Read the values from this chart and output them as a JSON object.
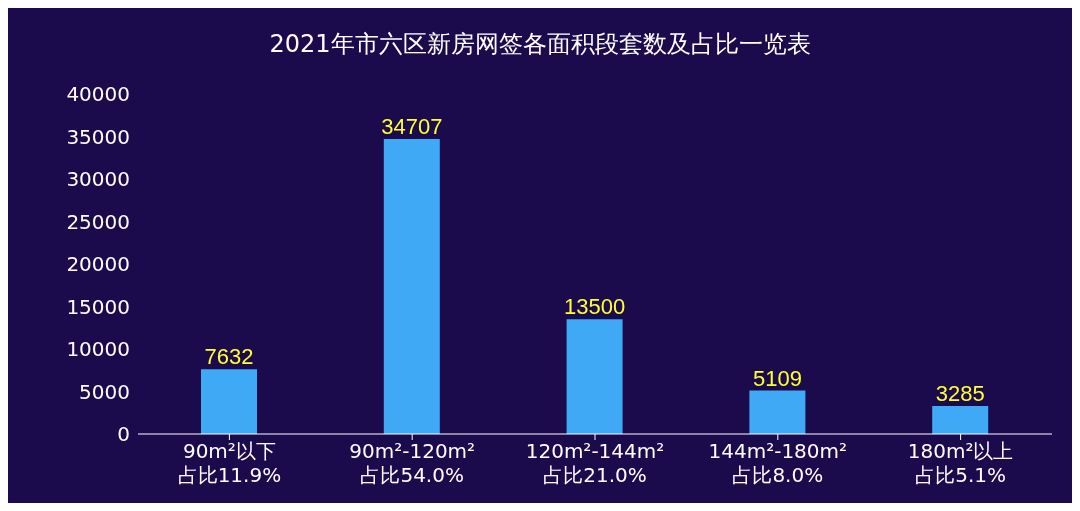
{
  "chart_data": {
    "type": "bar",
    "title": "2021年市六区新房网签各面积段套数及占比一览表",
    "categories": [
      "90m²以下",
      "90m²-120m²",
      "120m²-144m²",
      "144m²-180m²",
      "180m²以上"
    ],
    "values": [
      7632,
      34707,
      13500,
      5109,
      3285
    ],
    "color": "#3fa9f5",
    "ylim": [
      0,
      40000
    ],
    "yticks": [
      0,
      5000,
      10000,
      15000,
      20000,
      25000,
      30000,
      35000,
      40000
    ],
    "grid": false,
    "data_labels": true,
    "annotations": [
      "占比11.9%",
      "占比54.0%",
      "占比21.0%",
      "占比8.0%",
      "占比5.1%"
    ]
  }
}
